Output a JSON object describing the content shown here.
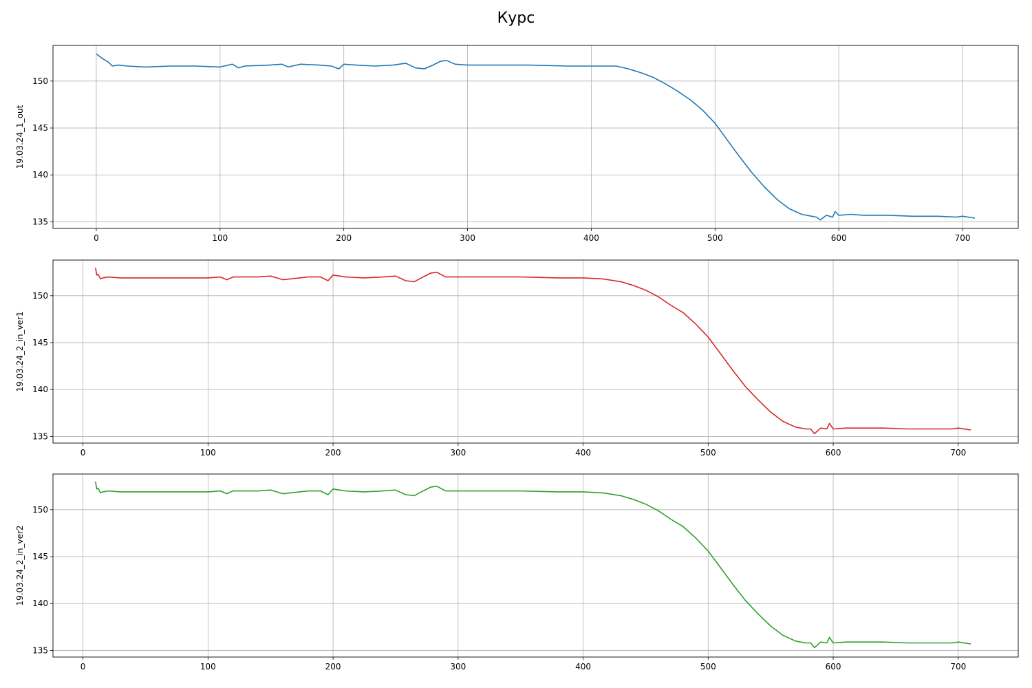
{
  "title": "Курс",
  "colors": [
    "#1f77b4",
    "#d62728",
    "#2ca02c"
  ],
  "chart_data": [
    {
      "type": "line",
      "ylabel": "19.03.24_1_out",
      "xlabel": "",
      "xlim": [
        -35,
        745
      ],
      "ylim": [
        134.3,
        153.8
      ],
      "xticks": [
        0,
        100,
        200,
        300,
        400,
        500,
        600,
        700
      ],
      "yticks": [
        135,
        140,
        145,
        150
      ],
      "grid": true,
      "series": [
        {
          "color": "#1f77b4",
          "x": [
            0,
            5,
            10,
            13,
            18,
            25,
            40,
            60,
            80,
            100,
            110,
            115,
            120,
            140,
            150,
            155,
            165,
            180,
            190,
            196,
            200,
            210,
            225,
            240,
            250,
            258,
            265,
            272,
            278,
            283,
            290,
            300,
            320,
            350,
            380,
            400,
            415,
            420,
            430,
            440,
            450,
            460,
            470,
            480,
            490,
            500,
            510,
            520,
            530,
            540,
            550,
            560,
            570,
            578,
            582,
            585,
            590,
            595,
            597,
            600,
            610,
            620,
            640,
            660,
            680,
            695,
            700,
            710
          ],
          "y": [
            152.9,
            152.4,
            152.0,
            151.6,
            151.7,
            151.6,
            151.5,
            151.6,
            151.6,
            151.5,
            151.8,
            151.4,
            151.6,
            151.7,
            151.8,
            151.5,
            151.8,
            151.7,
            151.6,
            151.3,
            151.8,
            151.7,
            151.6,
            151.7,
            151.9,
            151.4,
            151.3,
            151.7,
            152.1,
            152.2,
            151.8,
            151.7,
            151.7,
            151.7,
            151.6,
            151.6,
            151.6,
            151.6,
            151.3,
            150.9,
            150.4,
            149.7,
            148.9,
            148.0,
            146.9,
            145.5,
            143.7,
            141.9,
            140.2,
            138.7,
            137.4,
            136.4,
            135.8,
            135.6,
            135.5,
            135.2,
            135.7,
            135.5,
            136.1,
            135.7,
            135.8,
            135.7,
            135.7,
            135.6,
            135.6,
            135.5,
            135.6,
            135.4
          ]
        }
      ]
    },
    {
      "type": "line",
      "ylabel": "19.03.24_2_in_ver1",
      "xlabel": "",
      "xlim": [
        -24,
        748
      ],
      "ylim": [
        134.3,
        153.8
      ],
      "xticks": [
        0,
        100,
        200,
        300,
        400,
        500,
        600,
        700
      ],
      "yticks": [
        135,
        140,
        145,
        150
      ],
      "grid": true,
      "series": [
        {
          "color": "#d62728",
          "x": [
            10,
            11,
            12,
            14,
            16,
            20,
            30,
            50,
            70,
            90,
            100,
            110,
            115,
            120,
            140,
            150,
            160,
            180,
            190,
            196,
            200,
            210,
            225,
            240,
            250,
            258,
            265,
            272,
            278,
            283,
            290,
            300,
            320,
            350,
            380,
            400,
            415,
            420,
            430,
            440,
            450,
            460,
            470,
            480,
            490,
            500,
            510,
            520,
            530,
            540,
            550,
            560,
            570,
            578,
            582,
            585,
            590,
            595,
            597,
            600,
            610,
            620,
            640,
            660,
            680,
            695,
            700,
            710
          ],
          "y": [
            153.0,
            152.2,
            152.3,
            151.8,
            151.9,
            152.0,
            151.9,
            151.9,
            151.9,
            151.9,
            151.9,
            152.0,
            151.7,
            152.0,
            152.0,
            152.1,
            151.7,
            152.0,
            152.0,
            151.6,
            152.2,
            152.0,
            151.9,
            152.0,
            152.1,
            151.6,
            151.5,
            152.0,
            152.4,
            152.5,
            152.0,
            152.0,
            152.0,
            152.0,
            151.9,
            151.9,
            151.8,
            151.7,
            151.5,
            151.1,
            150.6,
            149.9,
            149.0,
            148.2,
            147.0,
            145.6,
            143.8,
            142.0,
            140.3,
            138.9,
            137.6,
            136.6,
            136.0,
            135.8,
            135.8,
            135.3,
            135.9,
            135.8,
            136.4,
            135.8,
            135.9,
            135.9,
            135.9,
            135.8,
            135.8,
            135.8,
            135.9,
            135.7
          ]
        }
      ]
    },
    {
      "type": "line",
      "ylabel": "19.03.24_2_in_ver2",
      "xlabel": "",
      "xlim": [
        -24,
        748
      ],
      "ylim": [
        134.3,
        153.8
      ],
      "xticks": [
        0,
        100,
        200,
        300,
        400,
        500,
        600,
        700
      ],
      "yticks": [
        135,
        140,
        145,
        150
      ],
      "grid": true,
      "series": [
        {
          "color": "#2ca02c",
          "x": [
            10,
            11,
            12,
            14,
            16,
            20,
            30,
            50,
            70,
            90,
            100,
            110,
            115,
            120,
            140,
            150,
            160,
            180,
            190,
            196,
            200,
            210,
            225,
            240,
            250,
            258,
            265,
            272,
            278,
            283,
            290,
            300,
            320,
            350,
            380,
            400,
            415,
            420,
            430,
            440,
            450,
            460,
            470,
            480,
            490,
            500,
            510,
            520,
            530,
            540,
            550,
            560,
            570,
            578,
            582,
            585,
            590,
            595,
            597,
            600,
            610,
            620,
            640,
            660,
            680,
            695,
            700,
            710
          ],
          "y": [
            153.0,
            152.2,
            152.3,
            151.8,
            151.9,
            152.0,
            151.9,
            151.9,
            151.9,
            151.9,
            151.9,
            152.0,
            151.7,
            152.0,
            152.0,
            152.1,
            151.7,
            152.0,
            152.0,
            151.6,
            152.2,
            152.0,
            151.9,
            152.0,
            152.1,
            151.6,
            151.5,
            152.0,
            152.4,
            152.5,
            152.0,
            152.0,
            152.0,
            152.0,
            151.9,
            151.9,
            151.8,
            151.7,
            151.5,
            151.1,
            150.6,
            149.9,
            149.0,
            148.2,
            147.0,
            145.6,
            143.8,
            142.0,
            140.3,
            138.9,
            137.6,
            136.6,
            136.0,
            135.8,
            135.8,
            135.3,
            135.9,
            135.8,
            136.4,
            135.8,
            135.9,
            135.9,
            135.9,
            135.8,
            135.8,
            135.8,
            135.9,
            135.7
          ]
        }
      ]
    }
  ]
}
